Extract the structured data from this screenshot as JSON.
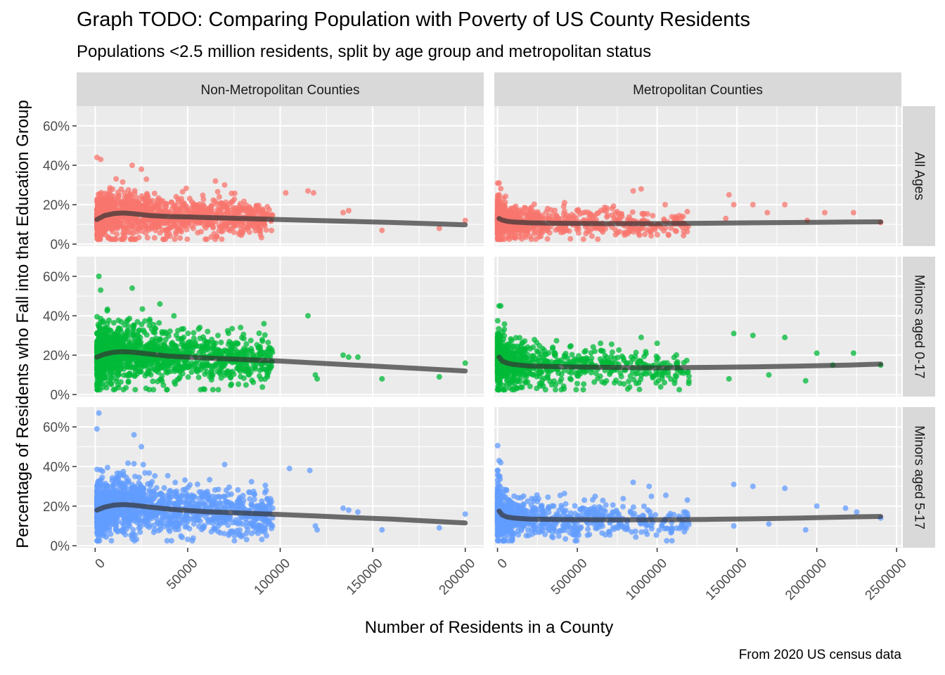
{
  "chart_data": {
    "type": "scatter",
    "title": "Graph TODO: Comparing Population with Poverty of US County Residents",
    "subtitle": "Populations <2.5 million residents, split by age group and metropolitan status",
    "xlabel": "Number of Residents in a County",
    "ylabel": "Percentage of Residents who Fall into that Education Group",
    "caption": "From 2020 US census data",
    "facet_columns": [
      "Non-Metropolitan Counties",
      "Metropolitan Counties"
    ],
    "facet_rows": [
      "All Ages",
      "Minors aged 0-17",
      "Minors aged 5-17"
    ],
    "series_colors": [
      "#F8766D",
      "#00BA38",
      "#619CFF"
    ],
    "smooth_color": "#333333",
    "ylim": [
      -0.01,
      0.7
    ],
    "y_ticks": [
      0,
      0.2,
      0.4,
      0.6
    ],
    "y_tick_labels": [
      "0%",
      "20%",
      "40%",
      "60%"
    ],
    "x_axes": [
      {
        "xlim": [
          -10000,
          210000
        ],
        "ticks": [
          0,
          50000,
          100000,
          150000,
          200000
        ],
        "tick_labels": [
          "0",
          "50000",
          "100000",
          "150000",
          "200000"
        ]
      },
      {
        "xlim": [
          -20000,
          2530000
        ],
        "ticks": [
          0,
          500000,
          1000000,
          1500000,
          2000000,
          2500000
        ],
        "tick_labels": [
          "0",
          "500000",
          "1000000",
          "1500000",
          "2000000",
          "2500000"
        ]
      }
    ],
    "grid": true,
    "smooth_curves": {
      "non_metro": {
        "x": [
          1000,
          5000,
          10000,
          15000,
          20000,
          30000,
          40000,
          50000,
          60000,
          80000,
          100000,
          120000,
          140000,
          160000,
          180000,
          200000
        ],
        "All Ages": [
          0.125,
          0.145,
          0.155,
          0.158,
          0.155,
          0.145,
          0.14,
          0.138,
          0.135,
          0.13,
          0.125,
          0.12,
          0.115,
          0.11,
          0.104,
          0.098
        ],
        "Minors aged 0-17": [
          0.19,
          0.205,
          0.215,
          0.218,
          0.215,
          0.205,
          0.195,
          0.19,
          0.185,
          0.178,
          0.17,
          0.16,
          0.15,
          0.14,
          0.13,
          0.12
        ],
        "Minors aged 5-17": [
          0.18,
          0.195,
          0.205,
          0.208,
          0.205,
          0.195,
          0.185,
          0.178,
          0.172,
          0.165,
          0.158,
          0.15,
          0.142,
          0.135,
          0.125,
          0.115
        ]
      },
      "metro": {
        "x": [
          10000,
          30000,
          60000,
          100000,
          200000,
          350000,
          500000,
          700000,
          1000000,
          1300000,
          1600000,
          1900000,
          2200000,
          2400000
        ],
        "All Ages": [
          0.13,
          0.122,
          0.116,
          0.112,
          0.108,
          0.106,
          0.105,
          0.104,
          0.104,
          0.106,
          0.108,
          0.11,
          0.112,
          0.113
        ],
        "Minors aged 0-17": [
          0.19,
          0.17,
          0.16,
          0.153,
          0.145,
          0.142,
          0.14,
          0.138,
          0.136,
          0.138,
          0.141,
          0.145,
          0.15,
          0.155
        ],
        "Minors aged 5-17": [
          0.175,
          0.155,
          0.145,
          0.14,
          0.135,
          0.133,
          0.132,
          0.131,
          0.131,
          0.133,
          0.136,
          0.14,
          0.145,
          0.148
        ]
      }
    },
    "notable_points": {
      "non_metro": {
        "All Ages": [
          [
            1000,
            0.44
          ],
          [
            3000,
            0.43
          ],
          [
            20000,
            0.4
          ],
          [
            25000,
            0.38
          ],
          [
            65000,
            0.32
          ],
          [
            70000,
            0.3
          ],
          [
            103000,
            0.26
          ],
          [
            115000,
            0.27
          ],
          [
            118000,
            0.26
          ],
          [
            137000,
            0.17
          ],
          [
            134000,
            0.16
          ],
          [
            155000,
            0.07
          ],
          [
            186000,
            0.08
          ],
          [
            200000,
            0.12
          ]
        ],
        "Minors aged 0-17": [
          [
            2000,
            0.6
          ],
          [
            3000,
            0.53
          ],
          [
            20000,
            0.54
          ],
          [
            35000,
            0.46
          ],
          [
            115000,
            0.4
          ],
          [
            119000,
            0.1
          ],
          [
            120000,
            0.08
          ],
          [
            134000,
            0.2
          ],
          [
            137000,
            0.19
          ],
          [
            142000,
            0.19
          ],
          [
            155000,
            0.08
          ],
          [
            186000,
            0.09
          ],
          [
            200000,
            0.16
          ]
        ],
        "Minors aged 5-17": [
          [
            2000,
            0.67
          ],
          [
            1000,
            0.59
          ],
          [
            21000,
            0.56
          ],
          [
            25000,
            0.5
          ],
          [
            70000,
            0.41
          ],
          [
            105000,
            0.39
          ],
          [
            116000,
            0.38
          ],
          [
            119000,
            0.1
          ],
          [
            120000,
            0.08
          ],
          [
            134000,
            0.19
          ],
          [
            137000,
            0.18
          ],
          [
            142000,
            0.17
          ],
          [
            155000,
            0.08
          ],
          [
            186000,
            0.09
          ],
          [
            200000,
            0.16
          ]
        ]
      },
      "metro": {
        "All Ages": [
          [
            10000,
            0.31
          ],
          [
            420000,
            0.21
          ],
          [
            850000,
            0.27
          ],
          [
            900000,
            0.28
          ],
          [
            1050000,
            0.2
          ],
          [
            1450000,
            0.25
          ],
          [
            1480000,
            0.2
          ],
          [
            1600000,
            0.2
          ],
          [
            1690000,
            0.16
          ],
          [
            1800000,
            0.2
          ],
          [
            2050000,
            0.16
          ],
          [
            2230000,
            0.16
          ],
          [
            2400000,
            0.11
          ],
          [
            1940000,
            0.12
          ],
          [
            1430000,
            0.13
          ]
        ],
        "Minors aged 0-17": [
          [
            10000,
            0.45
          ],
          [
            20000,
            0.45
          ],
          [
            900000,
            0.29
          ],
          [
            1000000,
            0.26
          ],
          [
            1480000,
            0.31
          ],
          [
            1600000,
            0.3
          ],
          [
            1800000,
            0.29
          ],
          [
            1930000,
            0.07
          ],
          [
            2000000,
            0.21
          ],
          [
            2100000,
            0.15
          ],
          [
            2230000,
            0.21
          ],
          [
            2400000,
            0.15
          ],
          [
            1700000,
            0.1
          ],
          [
            1450000,
            0.08
          ]
        ],
        "Minors aged 5-17": [
          [
            10000,
            0.43
          ],
          [
            20000,
            0.42
          ],
          [
            850000,
            0.32
          ],
          [
            950000,
            0.3
          ],
          [
            1480000,
            0.31
          ],
          [
            1600000,
            0.3
          ],
          [
            1800000,
            0.29
          ],
          [
            1930000,
            0.08
          ],
          [
            2000000,
            0.2
          ],
          [
            2180000,
            0.19
          ],
          [
            2250000,
            0.17
          ],
          [
            2400000,
            0.14
          ],
          [
            1700000,
            0.11
          ],
          [
            1480000,
            0.1
          ]
        ]
      }
    }
  }
}
